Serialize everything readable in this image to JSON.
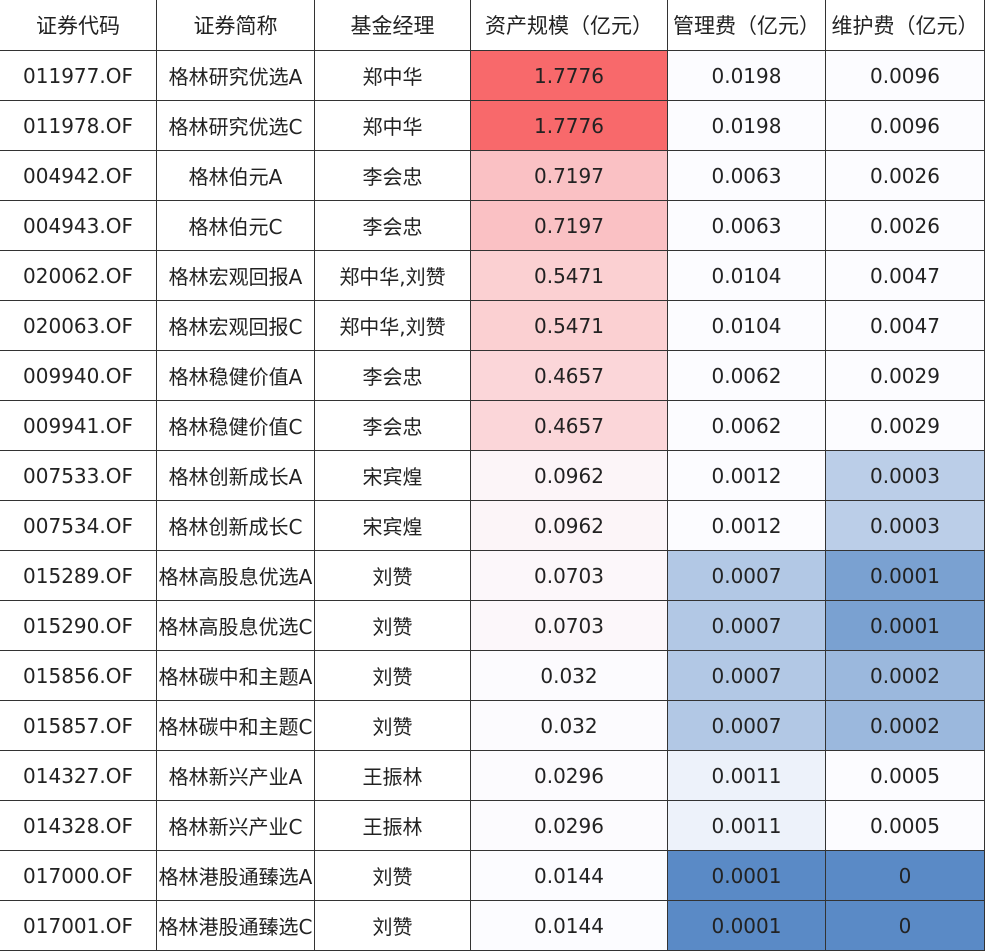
{
  "table": {
    "header": [
      "证券代码",
      "证券简称",
      "基金经理",
      "资产规模（亿元）",
      "管理费（亿元）",
      "维护费（亿元）"
    ],
    "rows": [
      [
        "011977.OF",
        "格林研究优选A",
        "郑中华",
        "1.7776",
        "0.0198",
        "0.0096"
      ],
      [
        "011978.OF",
        "格林研究优选C",
        "郑中华",
        "1.7776",
        "0.0198",
        "0.0096"
      ],
      [
        "004942.OF",
        "格林伯元A",
        "李会忠",
        "0.7197",
        "0.0063",
        "0.0026"
      ],
      [
        "004943.OF",
        "格林伯元C",
        "李会忠",
        "0.7197",
        "0.0063",
        "0.0026"
      ],
      [
        "020062.OF",
        "格林宏观回报A",
        "郑中华,刘赞",
        "0.5471",
        "0.0104",
        "0.0047"
      ],
      [
        "020063.OF",
        "格林宏观回报C",
        "郑中华,刘赞",
        "0.5471",
        "0.0104",
        "0.0047"
      ],
      [
        "009940.OF",
        "格林稳健价值A",
        "李会忠",
        "0.4657",
        "0.0062",
        "0.0029"
      ],
      [
        "009941.OF",
        "格林稳健价值C",
        "李会忠",
        "0.4657",
        "0.0062",
        "0.0029"
      ],
      [
        "007533.OF",
        "格林创新成长A",
        "宋宾煌",
        "0.0962",
        "0.0012",
        "0.0003"
      ],
      [
        "007534.OF",
        "格林创新成长C",
        "宋宾煌",
        "0.0962",
        "0.0012",
        "0.0003"
      ],
      [
        "015289.OF",
        "格林高股息优选A",
        "刘赞",
        "0.0703",
        "0.0007",
        "0.0001"
      ],
      [
        "015290.OF",
        "格林高股息优选C",
        "刘赞",
        "0.0703",
        "0.0007",
        "0.0001"
      ],
      [
        "015856.OF",
        "格林碳中和主题A",
        "刘赞",
        "0.032",
        "0.0007",
        "0.0002"
      ],
      [
        "015857.OF",
        "格林碳中和主题C",
        "刘赞",
        "0.032",
        "0.0007",
        "0.0002"
      ],
      [
        "014327.OF",
        "格林新兴产业A",
        "王振林",
        "0.0296",
        "0.0011",
        "0.0005"
      ],
      [
        "014328.OF",
        "格林新兴产业C",
        "王振林",
        "0.0296",
        "0.0011",
        "0.0005"
      ],
      [
        "017000.OF",
        "格林港股通臻选A",
        "刘赞",
        "0.0144",
        "0.0001",
        "0"
      ],
      [
        "017001.OF",
        "格林港股通臻选C",
        "刘赞",
        "0.0144",
        "0.0001",
        "0"
      ]
    ]
  }
}
